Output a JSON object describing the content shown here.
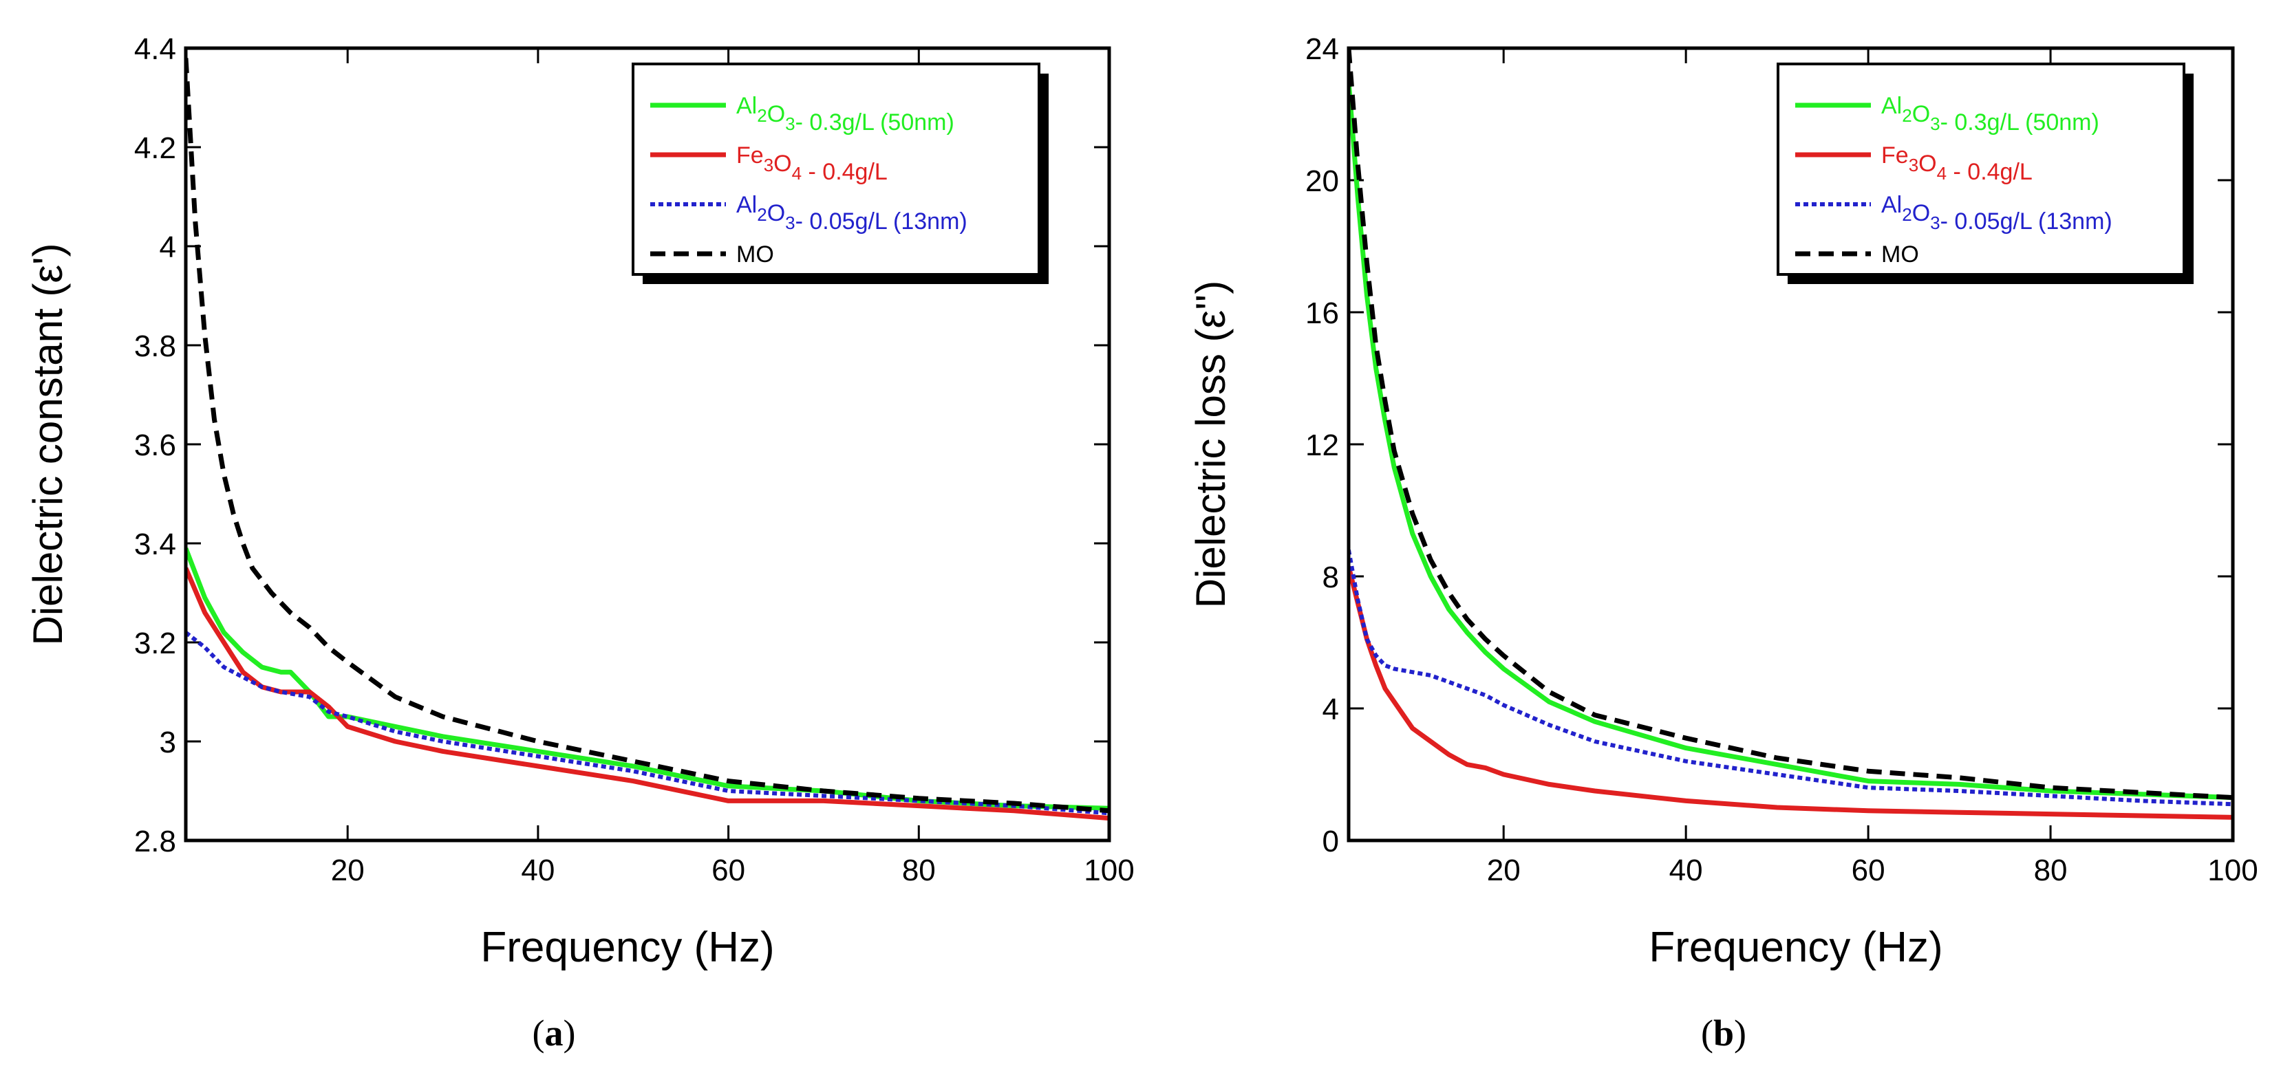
{
  "chart_data": [
    {
      "type": "line",
      "panel": "a",
      "ylabel": "Dielectric constant (ε')",
      "xlabel": "Frequency (Hz)",
      "caption": {
        "open": "(",
        "letter": "a",
        "close": ")"
      },
      "xlim": [
        3,
        100
      ],
      "ylim": [
        2.8,
        4.4
      ],
      "x_ticks": [
        20,
        40,
        60,
        80,
        100
      ],
      "y_ticks": [
        2.8,
        3,
        3.2,
        3.4,
        3.6,
        3.8,
        4,
        4.2,
        4.4
      ],
      "x_tick_labels": [
        "20",
        "40",
        "60",
        "80",
        "100"
      ],
      "y_tick_labels": [
        "2.8",
        "3",
        "3.2",
        "3.4",
        "3.6",
        "3.8",
        "4",
        "4.2",
        "4.4"
      ],
      "series": [
        {
          "name": "Al2O3 - 0.3g/L (50nm)",
          "color": "#22ee22",
          "dash": "solid",
          "x": [
            3,
            5,
            7,
            9,
            11,
            13,
            14,
            16,
            18,
            20,
            25,
            30,
            40,
            50,
            60,
            70,
            80,
            90,
            100
          ],
          "y": [
            3.39,
            3.29,
            3.22,
            3.18,
            3.15,
            3.14,
            3.14,
            3.1,
            3.05,
            3.05,
            3.03,
            3.01,
            2.98,
            2.95,
            2.91,
            2.9,
            2.88,
            2.87,
            2.865
          ]
        },
        {
          "name": "Fe3O4 - 0.4g/L",
          "color": "#e02020",
          "dash": "solid",
          "x": [
            3,
            5,
            7,
            9,
            11,
            13,
            16,
            18,
            20,
            25,
            30,
            40,
            50,
            60,
            70,
            80,
            90,
            100
          ],
          "y": [
            3.35,
            3.26,
            3.2,
            3.14,
            3.11,
            3.1,
            3.1,
            3.07,
            3.03,
            3.0,
            2.98,
            2.95,
            2.92,
            2.88,
            2.88,
            2.87,
            2.86,
            2.845
          ]
        },
        {
          "name": "Al2O3 - 0.05g/L (13nm)",
          "color": "#2222cc",
          "dash": "dotted",
          "x": [
            3,
            5,
            7,
            9,
            11,
            13,
            16,
            18,
            20,
            25,
            30,
            40,
            50,
            60,
            70,
            80,
            90,
            100
          ],
          "y": [
            3.22,
            3.19,
            3.15,
            3.13,
            3.11,
            3.1,
            3.09,
            3.06,
            3.05,
            3.02,
            3.0,
            2.97,
            2.94,
            2.9,
            2.89,
            2.88,
            2.87,
            2.855
          ]
        },
        {
          "name": "MO",
          "color": "#000000",
          "dash": "dashed",
          "x": [
            3,
            4,
            5,
            6,
            7,
            8,
            9,
            10,
            12,
            14,
            16,
            18,
            20,
            25,
            30,
            40,
            50,
            60,
            70,
            80,
            90,
            100
          ],
          "y": [
            4.38,
            4.05,
            3.82,
            3.65,
            3.54,
            3.46,
            3.4,
            3.35,
            3.3,
            3.26,
            3.23,
            3.19,
            3.16,
            3.09,
            3.05,
            3.0,
            2.96,
            2.92,
            2.9,
            2.885,
            2.875,
            2.86
          ]
        }
      ],
      "legend": [
        {
          "color": "#22ee22",
          "dash": "solid",
          "parts": [
            [
              "Al",
              ""
            ],
            [
              "2",
              "sub"
            ],
            [
              "O",
              ""
            ],
            [
              "3",
              "sub"
            ],
            [
              "- 0.3g/L (50nm)",
              ""
            ]
          ]
        },
        {
          "color": "#e02020",
          "dash": "solid",
          "parts": [
            [
              "Fe",
              ""
            ],
            [
              "3",
              "sub"
            ],
            [
              "O",
              ""
            ],
            [
              "4",
              "sub"
            ],
            [
              " - 0.4g/L",
              ""
            ]
          ]
        },
        {
          "color": "#2222cc",
          "dash": "dotted",
          "parts": [
            [
              "Al",
              ""
            ],
            [
              "2",
              "sub"
            ],
            [
              "O",
              ""
            ],
            [
              "3",
              "sub"
            ],
            [
              "- 0.05g/L (13nm)",
              ""
            ]
          ]
        },
        {
          "color": "#000000",
          "dash": "dashed",
          "parts": [
            [
              "MO",
              ""
            ]
          ]
        }
      ],
      "legend_position": "top-right"
    },
    {
      "type": "line",
      "panel": "b",
      "ylabel": "Dielectric loss (ε'')",
      "xlabel": "Frequency (Hz)",
      "caption": {
        "open": "(",
        "letter": "b",
        "close": ")"
      },
      "xlim": [
        3,
        100
      ],
      "ylim": [
        0,
        24
      ],
      "x_ticks": [
        20,
        40,
        60,
        80,
        100
      ],
      "y_ticks": [
        0,
        4,
        8,
        12,
        16,
        20,
        24
      ],
      "x_tick_labels": [
        "20",
        "40",
        "60",
        "80",
        "100"
      ],
      "y_tick_labels": [
        "0",
        "4",
        "8",
        "12",
        "16",
        "20",
        "24"
      ],
      "series": [
        {
          "name": "Al2O3 - 0.3g/L (50nm)",
          "color": "#22ee22",
          "dash": "solid",
          "x": [
            3,
            4,
            5,
            6,
            7,
            8,
            10,
            12,
            14,
            16,
            18,
            20,
            25,
            30,
            40,
            50,
            60,
            70,
            80,
            90,
            100
          ],
          "y": [
            23.0,
            19.5,
            16.5,
            14.3,
            12.7,
            11.3,
            9.3,
            8.0,
            7.0,
            6.3,
            5.7,
            5.2,
            4.2,
            3.6,
            2.8,
            2.3,
            1.8,
            1.7,
            1.5,
            1.4,
            1.3
          ]
        },
        {
          "name": "Fe3O4 - 0.4g/L",
          "color": "#e02020",
          "dash": "solid",
          "x": [
            3,
            4,
            5,
            6,
            7,
            8,
            10,
            12,
            14,
            16,
            18,
            20,
            25,
            30,
            40,
            50,
            60,
            70,
            80,
            90,
            100
          ],
          "y": [
            8.3,
            7.2,
            6.1,
            5.3,
            4.6,
            4.2,
            3.4,
            3.0,
            2.6,
            2.3,
            2.2,
            2.0,
            1.7,
            1.5,
            1.2,
            1.0,
            0.9,
            0.85,
            0.8,
            0.75,
            0.7
          ]
        },
        {
          "name": "Al2O3 - 0.05g/L (13nm)",
          "color": "#2222cc",
          "dash": "dotted",
          "x": [
            3,
            4,
            5,
            6,
            7,
            8,
            10,
            12,
            14,
            16,
            18,
            20,
            25,
            30,
            40,
            50,
            60,
            70,
            80,
            90,
            100
          ],
          "y": [
            8.8,
            7.3,
            6.1,
            5.6,
            5.3,
            5.2,
            5.1,
            5.0,
            4.8,
            4.6,
            4.4,
            4.1,
            3.5,
            3.0,
            2.4,
            2.0,
            1.6,
            1.5,
            1.35,
            1.2,
            1.1
          ]
        },
        {
          "name": "MO",
          "color": "#000000",
          "dash": "dashed",
          "x": [
            3,
            4,
            5,
            6,
            7,
            8,
            10,
            12,
            14,
            16,
            18,
            20,
            25,
            30,
            40,
            50,
            60,
            70,
            80,
            90,
            100
          ],
          "y": [
            24.0,
            20.5,
            17.5,
            15.0,
            13.3,
            11.8,
            9.9,
            8.5,
            7.5,
            6.7,
            6.1,
            5.6,
            4.5,
            3.8,
            3.1,
            2.5,
            2.1,
            1.9,
            1.6,
            1.45,
            1.3
          ]
        }
      ],
      "legend": [
        {
          "color": "#22ee22",
          "dash": "solid",
          "parts": [
            [
              "Al",
              ""
            ],
            [
              "2",
              "sub"
            ],
            [
              "O",
              ""
            ],
            [
              "3",
              "sub"
            ],
            [
              "- 0.3g/L (50nm)",
              ""
            ]
          ]
        },
        {
          "color": "#e02020",
          "dash": "solid",
          "parts": [
            [
              "Fe",
              ""
            ],
            [
              "3",
              "sub"
            ],
            [
              "O",
              ""
            ],
            [
              "4",
              "sub"
            ],
            [
              " - 0.4g/L",
              ""
            ]
          ]
        },
        {
          "color": "#2222cc",
          "dash": "dotted",
          "parts": [
            [
              "Al",
              ""
            ],
            [
              "2",
              "sub"
            ],
            [
              "O",
              ""
            ],
            [
              "3",
              "sub"
            ],
            [
              "- 0.05g/L (13nm)",
              ""
            ]
          ]
        },
        {
          "color": "#000000",
          "dash": "dashed",
          "parts": [
            [
              "MO",
              ""
            ]
          ]
        }
      ],
      "legend_position": "top-right"
    }
  ]
}
